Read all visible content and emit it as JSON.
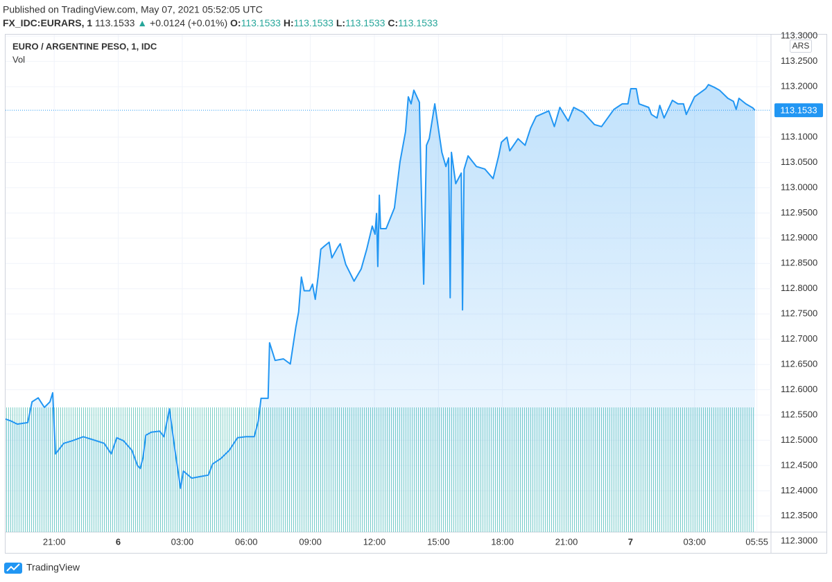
{
  "header": {
    "published": "Published on TradingView.com, May 07, 2021 05:52:05 UTC",
    "symbol": "FX_IDC:EURARS, 1",
    "price": "113.1533",
    "arrow": "▲",
    "change": "+0.0124 (+0.01%)",
    "ohlc": [
      [
        "O:",
        "113.1533"
      ],
      [
        "H:",
        "113.1533"
      ],
      [
        "L:",
        "113.1533"
      ],
      [
        "C:",
        "113.1533"
      ]
    ]
  },
  "footer": {
    "brand": "TradingView"
  },
  "chart_data": {
    "type": "area",
    "title": "EURO / ARGENTINE PESO, 1, IDC",
    "volume_label": "Vol",
    "currency": "ARS",
    "color": "#2196f3",
    "grid": true,
    "last_price": 113.1533,
    "x": [
      18.72,
      18.98,
      19.27,
      19.76,
      19.96,
      20.25,
      20.54,
      20.8,
      20.93,
      21.06,
      21.45,
      21.84,
      22.36,
      22.75,
      23.34,
      23.67,
      23.93,
      24.25,
      24.64,
      24.9,
      25.03,
      25.16,
      25.29,
      25.55,
      25.94,
      26.14,
      26.4,
      26.66,
      26.92,
      27.05,
      27.44,
      27.83,
      28.22,
      28.42,
      28.81,
      29.2,
      29.59,
      29.98,
      30.37,
      30.56,
      30.69,
      31.02,
      31.09,
      31.35,
      31.74,
      32.06,
      32.32,
      32.45,
      32.58,
      32.71,
      32.97,
      33.1,
      33.23,
      33.36,
      33.49,
      33.62,
      33.88,
      34.01,
      34.27,
      34.4,
      34.66,
      35.05,
      35.38,
      35.64,
      35.9,
      36.03,
      36.1,
      36.16,
      36.23,
      36.29,
      36.55,
      36.94,
      37.2,
      37.46,
      37.59,
      37.72,
      37.85,
      38.11,
      38.18,
      38.31,
      38.44,
      38.57,
      38.83,
      39.16,
      39.35,
      39.48,
      39.55,
      39.61,
      39.81,
      40.07,
      40.13,
      40.2,
      40.39,
      40.78,
      41.17,
      41.56,
      41.82,
      41.95,
      42.21,
      42.34,
      42.73,
      43.06,
      43.32,
      43.58,
      44.17,
      44.43,
      44.69,
      45.08,
      45.34,
      45.79,
      46.31,
      46.64,
      47.22,
      47.61,
      47.88,
      48.01,
      48.27,
      48.4,
      48.85,
      48.98,
      49.24,
      49.37,
      49.57,
      49.96,
      50.22,
      50.48,
      50.61,
      51.0,
      51.52,
      51.65,
      51.91,
      52.17,
      52.56,
      52.82,
      52.95,
      53.08,
      53.4,
      53.73,
      53.83
    ],
    "values": [
      112.542,
      112.538,
      112.532,
      112.535,
      112.576,
      112.584,
      112.565,
      112.576,
      112.594,
      112.473,
      112.494,
      112.499,
      112.507,
      112.502,
      112.494,
      112.473,
      112.505,
      112.499,
      112.48,
      112.45,
      112.444,
      112.466,
      112.51,
      112.516,
      112.518,
      112.507,
      112.562,
      112.48,
      112.405,
      112.439,
      112.425,
      112.428,
      112.431,
      112.453,
      112.464,
      112.48,
      112.505,
      112.507,
      112.507,
      112.538,
      112.583,
      112.583,
      112.693,
      112.658,
      112.661,
      112.651,
      112.724,
      112.754,
      112.823,
      112.796,
      112.796,
      112.809,
      112.779,
      112.823,
      112.878,
      112.883,
      112.892,
      112.861,
      112.881,
      112.889,
      112.848,
      112.815,
      112.839,
      112.878,
      112.924,
      112.908,
      112.949,
      112.844,
      112.985,
      112.919,
      112.919,
      112.96,
      113.051,
      113.111,
      113.18,
      113.166,
      113.193,
      113.169,
      113.029,
      112.809,
      113.084,
      113.097,
      113.166,
      113.07,
      113.042,
      113.059,
      112.782,
      113.07,
      113.008,
      113.029,
      112.758,
      113.036,
      113.063,
      113.042,
      113.037,
      113.018,
      113.063,
      113.09,
      113.1,
      113.073,
      113.097,
      113.084,
      113.118,
      113.141,
      113.152,
      113.121,
      113.159,
      113.132,
      113.159,
      113.149,
      113.125,
      113.121,
      113.155,
      113.166,
      113.166,
      113.196,
      113.196,
      113.166,
      113.159,
      113.145,
      113.138,
      113.163,
      113.138,
      113.173,
      113.166,
      113.166,
      113.145,
      113.18,
      113.196,
      113.204,
      113.199,
      113.193,
      113.177,
      113.171,
      113.155,
      113.177,
      113.166,
      113.158,
      113.153
    ],
    "xlim": [
      18.72,
      54.58
    ],
    "xticks": [
      {
        "value": 21,
        "label": "21:00"
      },
      {
        "value": 24,
        "label": "6"
      },
      {
        "value": 27,
        "label": "03:00"
      },
      {
        "value": 30,
        "label": "06:00"
      },
      {
        "value": 33,
        "label": "09:00"
      },
      {
        "value": 36,
        "label": "12:00"
      },
      {
        "value": 39,
        "label": "15:00"
      },
      {
        "value": 42,
        "label": "18:00"
      },
      {
        "value": 45,
        "label": "21:00"
      },
      {
        "value": 48,
        "label": "7"
      },
      {
        "value": 51,
        "label": "03:00"
      },
      {
        "value": 53.92,
        "label": "05:55"
      }
    ],
    "ylim": [
      112.277,
      113.303
    ],
    "yticks": [
      {
        "value": 112.3,
        "label": "112.3000"
      },
      {
        "value": 112.35,
        "label": "112.3500"
      },
      {
        "value": 112.4,
        "label": "112.4000"
      },
      {
        "value": 112.45,
        "label": "112.4500"
      },
      {
        "value": 112.5,
        "label": "112.5000"
      },
      {
        "value": 112.55,
        "label": "112.5500"
      },
      {
        "value": 112.6,
        "label": "112.6000"
      },
      {
        "value": 112.65,
        "label": "112.6500"
      },
      {
        "value": 112.7,
        "label": "112.7000"
      },
      {
        "value": 112.75,
        "label": "112.7500"
      },
      {
        "value": 112.8,
        "label": "112.8000"
      },
      {
        "value": 112.85,
        "label": "112.8500"
      },
      {
        "value": 112.9,
        "label": "112.9000"
      },
      {
        "value": 112.95,
        "label": "112.9500"
      },
      {
        "value": 113.0,
        "label": "113.0000"
      },
      {
        "value": 113.05,
        "label": "113.0500"
      },
      {
        "value": 113.1,
        "label": "113.1000"
      },
      {
        "value": 113.2,
        "label": "113.2000"
      },
      {
        "value": 113.25,
        "label": "113.2500"
      },
      {
        "value": 113.3,
        "label": "113.3000"
      }
    ]
  }
}
